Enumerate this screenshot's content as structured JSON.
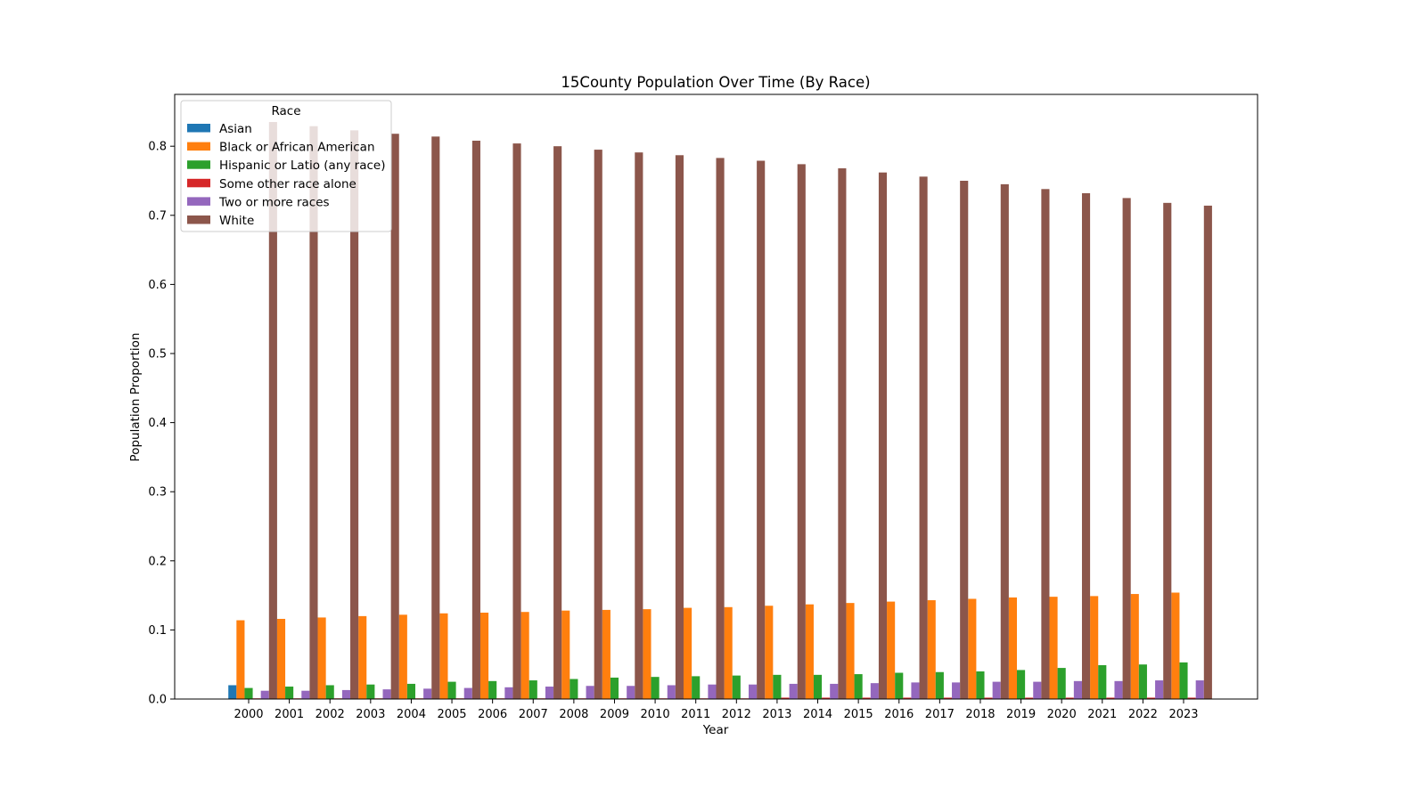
{
  "chart_data": {
    "type": "bar",
    "title": "15County Population Over Time (By Race)",
    "xlabel": "Year",
    "ylabel": "Population Proportion",
    "ylim": [
      0,
      0.875
    ],
    "yticks": [
      "0.0",
      "0.1",
      "0.2",
      "0.3",
      "0.4",
      "0.5",
      "0.6",
      "0.7",
      "0.8"
    ],
    "grid": false,
    "legend": {
      "title": "Race",
      "placement": "upper-left"
    },
    "categories": [
      "2000",
      "2001",
      "2002",
      "2003",
      "2004",
      "2005",
      "2006",
      "2007",
      "2008",
      "2009",
      "2010",
      "2011",
      "2012",
      "2013",
      "2014",
      "2015",
      "2016",
      "2017",
      "2018",
      "2019",
      "2020",
      "2021",
      "2022",
      "2023"
    ],
    "series": [
      {
        "name": "Asian",
        "color": "#1f77b4",
        "values": [
          0.02,
          0,
          0,
          0,
          0,
          0,
          0,
          0,
          0,
          0,
          0,
          0,
          0,
          0,
          0,
          0,
          0,
          0,
          0,
          0,
          0,
          0,
          0,
          0
        ]
      },
      {
        "name": "Black or African American",
        "color": "#ff7f0e",
        "values": [
          0.114,
          0.116,
          0.118,
          0.12,
          0.122,
          0.124,
          0.125,
          0.126,
          0.128,
          0.129,
          0.13,
          0.132,
          0.133,
          0.135,
          0.137,
          0.139,
          0.141,
          0.143,
          0.145,
          0.147,
          0.148,
          0.149,
          0.152,
          0.154
        ]
      },
      {
        "name": "Hispanic or Latio (any race)",
        "color": "#2ca02c",
        "values": [
          0.016,
          0.018,
          0.02,
          0.021,
          0.022,
          0.025,
          0.026,
          0.027,
          0.029,
          0.031,
          0.032,
          0.033,
          0.034,
          0.035,
          0.035,
          0.036,
          0.038,
          0.039,
          0.04,
          0.042,
          0.045,
          0.049,
          0.05,
          0.053
        ]
      },
      {
        "name": "Some other race alone",
        "color": "#d62728",
        "values": [
          0.001,
          0.001,
          0.001,
          0.001,
          0.001,
          0.001,
          0.001,
          0.001,
          0.001,
          0.001,
          0.001,
          0.001,
          0.001,
          0.002,
          0.002,
          0.002,
          0.002,
          0.002,
          0.002,
          0.002,
          0.002,
          0.002,
          0.002,
          0.002
        ]
      },
      {
        "name": "Two or more races",
        "color": "#9467bd",
        "values": [
          0.012,
          0.012,
          0.013,
          0.014,
          0.015,
          0.016,
          0.017,
          0.018,
          0.019,
          0.019,
          0.02,
          0.021,
          0.021,
          0.022,
          0.022,
          0.023,
          0.024,
          0.024,
          0.025,
          0.025,
          0.026,
          0.026,
          0.027,
          0.027
        ]
      },
      {
        "name": "White",
        "color": "#8c564b",
        "values": [
          0.835,
          0.829,
          0.823,
          0.818,
          0.814,
          0.808,
          0.804,
          0.8,
          0.795,
          0.791,
          0.787,
          0.783,
          0.779,
          0.774,
          0.768,
          0.762,
          0.756,
          0.75,
          0.745,
          0.738,
          0.732,
          0.725,
          0.718,
          0.714
        ]
      }
    ]
  }
}
